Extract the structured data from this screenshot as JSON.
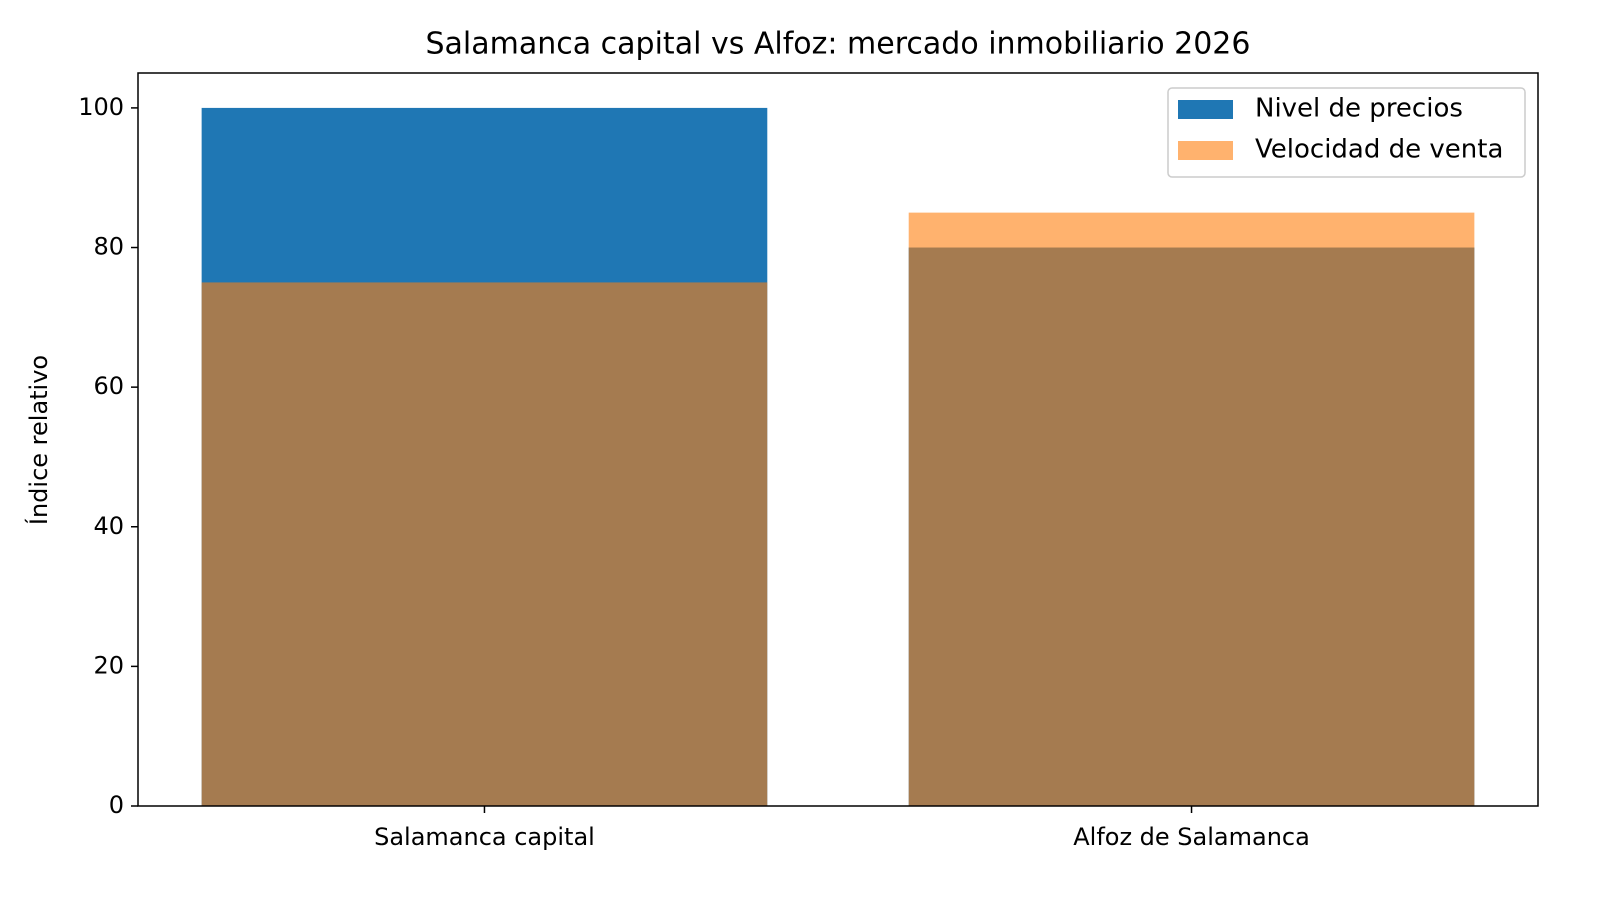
{
  "chart_data": {
    "type": "bar",
    "title": "Salamanca capital vs Alfoz: mercado inmobiliario 2026",
    "y_label": "Índice relativo",
    "categories": [
      "Salamanca capital",
      "Alfoz de Salamanca"
    ],
    "series": [
      {
        "name": "Nivel de precios",
        "color": "#1f77b4",
        "opacity": 1,
        "values": [
          100,
          80
        ]
      },
      {
        "name": "Velocidad de venta",
        "color": "#ff7f0e",
        "opacity": 0.6,
        "values": [
          75,
          85
        ]
      }
    ],
    "ylim": [
      0,
      105
    ],
    "yticks": [
      0,
      20,
      40,
      60,
      80,
      100
    ],
    "grid": false,
    "legend": "upper right"
  }
}
